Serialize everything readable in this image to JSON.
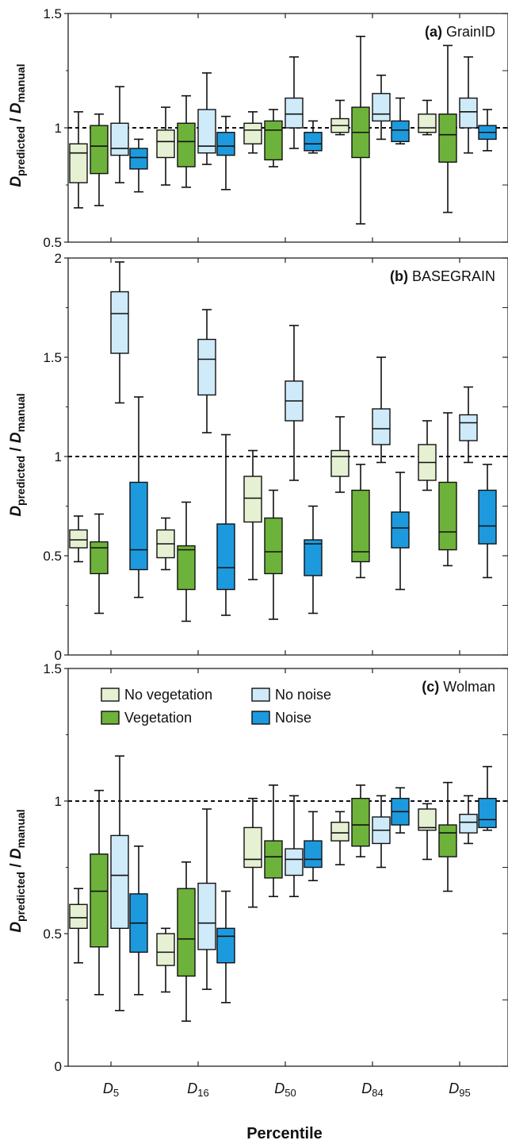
{
  "figure": {
    "ylabel_main": "D",
    "ylabel_sub1": "predicted",
    "ylabel_sep": " / ",
    "ylabel_main2": "D",
    "ylabel_sub2": "manual",
    "xlabel": "Percentile"
  },
  "categories": [
    {
      "main": "D",
      "sub": "5"
    },
    {
      "main": "D",
      "sub": "16"
    },
    {
      "main": "D",
      "sub": "50"
    },
    {
      "main": "D",
      "sub": "84"
    },
    {
      "main": "D",
      "sub": "95"
    }
  ],
  "legend": [
    {
      "label": "No vegetation",
      "color": "#e6f0d2"
    },
    {
      "label": "No noise",
      "color": "#cfeaf8"
    },
    {
      "label": "Vegetation",
      "color": "#6db23a"
    },
    {
      "label": "Noise",
      "color": "#1d9ade"
    }
  ],
  "chart_data": [
    {
      "type": "box",
      "panel_tag": "(a)",
      "title": "GrainID",
      "ylim": [
        0.5,
        1.5
      ],
      "yticks": [
        "0.5",
        "1",
        "1.5"
      ],
      "reference_line": 1,
      "series": [
        {
          "name": "No vegetation",
          "color": "#e6f0d2",
          "boxes": [
            {
              "min": 0.65,
              "q1": 0.76,
              "median": 0.89,
              "q3": 0.93,
              "max": 1.07
            },
            {
              "min": 0.75,
              "q1": 0.87,
              "median": 0.94,
              "q3": 0.99,
              "max": 1.09
            },
            {
              "min": 0.89,
              "q1": 0.93,
              "median": 0.99,
              "q3": 1.02,
              "max": 1.07
            },
            {
              "min": 0.97,
              "q1": 0.98,
              "median": 1.01,
              "q3": 1.04,
              "max": 1.12
            },
            {
              "min": 0.97,
              "q1": 0.98,
              "median": 1.0,
              "q3": 1.06,
              "max": 1.12
            }
          ]
        },
        {
          "name": "Vegetation",
          "color": "#6db23a",
          "boxes": [
            {
              "min": 0.66,
              "q1": 0.8,
              "median": 0.92,
              "q3": 1.01,
              "max": 1.06
            },
            {
              "min": 0.74,
              "q1": 0.83,
              "median": 0.94,
              "q3": 1.02,
              "max": 1.14
            },
            {
              "min": 0.83,
              "q1": 0.86,
              "median": 0.99,
              "q3": 1.03,
              "max": 1.08
            },
            {
              "min": 0.58,
              "q1": 0.87,
              "median": 0.98,
              "q3": 1.09,
              "max": 1.4
            },
            {
              "min": 0.63,
              "q1": 0.85,
              "median": 0.97,
              "q3": 1.06,
              "max": 1.36
            }
          ]
        },
        {
          "name": "No noise",
          "color": "#cfeaf8",
          "boxes": [
            {
              "min": 0.76,
              "q1": 0.88,
              "median": 0.91,
              "q3": 1.02,
              "max": 1.18
            },
            {
              "min": 0.84,
              "q1": 0.89,
              "median": 0.92,
              "q3": 1.08,
              "max": 1.24
            },
            {
              "min": 0.91,
              "q1": 1.0,
              "median": 1.06,
              "q3": 1.13,
              "max": 1.31
            },
            {
              "min": 0.95,
              "q1": 1.03,
              "median": 1.06,
              "q3": 1.15,
              "max": 1.23
            },
            {
              "min": 0.89,
              "q1": 1.0,
              "median": 1.07,
              "q3": 1.13,
              "max": 1.31
            }
          ]
        },
        {
          "name": "Noise",
          "color": "#1d9ade",
          "boxes": [
            {
              "min": 0.72,
              "q1": 0.82,
              "median": 0.87,
              "q3": 0.91,
              "max": 0.95
            },
            {
              "min": 0.73,
              "q1": 0.88,
              "median": 0.92,
              "q3": 0.98,
              "max": 1.05
            },
            {
              "min": 0.89,
              "q1": 0.9,
              "median": 0.93,
              "q3": 0.98,
              "max": 1.03
            },
            {
              "min": 0.93,
              "q1": 0.94,
              "median": 0.99,
              "q3": 1.03,
              "max": 1.13
            },
            {
              "min": 0.9,
              "q1": 0.95,
              "median": 0.98,
              "q3": 1.01,
              "max": 1.08
            }
          ]
        }
      ]
    },
    {
      "type": "box",
      "panel_tag": "(b)",
      "title": "BASEGRAIN",
      "ylim": [
        0,
        2
      ],
      "yticks": [
        "0",
        "0.5",
        "1",
        "1.5",
        "2"
      ],
      "reference_line": 1,
      "series": [
        {
          "name": "No vegetation",
          "color": "#e6f0d2",
          "boxes": [
            {
              "min": 0.47,
              "q1": 0.54,
              "median": 0.58,
              "q3": 0.63,
              "max": 0.7
            },
            {
              "min": 0.43,
              "q1": 0.49,
              "median": 0.56,
              "q3": 0.63,
              "max": 0.69
            },
            {
              "min": 0.38,
              "q1": 0.67,
              "median": 0.79,
              "q3": 0.9,
              "max": 1.03
            },
            {
              "min": 0.82,
              "q1": 0.9,
              "median": 1.0,
              "q3": 1.03,
              "max": 1.2
            },
            {
              "min": 0.83,
              "q1": 0.88,
              "median": 0.97,
              "q3": 1.06,
              "max": 1.18
            }
          ]
        },
        {
          "name": "Vegetation",
          "color": "#6db23a",
          "boxes": [
            {
              "min": 0.21,
              "q1": 0.41,
              "median": 0.54,
              "q3": 0.57,
              "max": 0.71
            },
            {
              "min": 0.17,
              "q1": 0.33,
              "median": 0.53,
              "q3": 0.55,
              "max": 0.77
            },
            {
              "min": 0.18,
              "q1": 0.41,
              "median": 0.52,
              "q3": 0.69,
              "max": 0.83
            },
            {
              "min": 0.39,
              "q1": 0.47,
              "median": 0.52,
              "q3": 0.83,
              "max": 0.96
            },
            {
              "min": 0.45,
              "q1": 0.53,
              "median": 0.62,
              "q3": 0.87,
              "max": 1.22
            }
          ]
        },
        {
          "name": "No noise",
          "color": "#cfeaf8",
          "boxes": [
            {
              "min": 1.27,
              "q1": 1.52,
              "median": 1.72,
              "q3": 1.83,
              "max": 1.98
            },
            {
              "min": 1.12,
              "q1": 1.31,
              "median": 1.49,
              "q3": 1.59,
              "max": 1.74
            },
            {
              "min": 0.88,
              "q1": 1.18,
              "median": 1.28,
              "q3": 1.38,
              "max": 1.66
            },
            {
              "min": 0.97,
              "q1": 1.06,
              "median": 1.14,
              "q3": 1.24,
              "max": 1.5
            },
            {
              "min": 0.97,
              "q1": 1.08,
              "median": 1.17,
              "q3": 1.21,
              "max": 1.35
            }
          ]
        },
        {
          "name": "Noise",
          "color": "#1d9ade",
          "boxes": [
            {
              "min": 0.29,
              "q1": 0.43,
              "median": 0.53,
              "q3": 0.87,
              "max": 1.3
            },
            {
              "min": 0.2,
              "q1": 0.33,
              "median": 0.44,
              "q3": 0.66,
              "max": 1.11
            },
            {
              "min": 0.21,
              "q1": 0.4,
              "median": 0.56,
              "q3": 0.58,
              "max": 0.75
            },
            {
              "min": 0.33,
              "q1": 0.54,
              "median": 0.64,
              "q3": 0.72,
              "max": 0.92
            },
            {
              "min": 0.39,
              "q1": 0.56,
              "median": 0.65,
              "q3": 0.83,
              "max": 0.96
            }
          ]
        }
      ]
    },
    {
      "type": "box",
      "panel_tag": "(c)",
      "title": "Wolman",
      "ylim": [
        0,
        1.5
      ],
      "yticks": [
        "0",
        "0.5",
        "1",
        "1.5"
      ],
      "reference_line": 1,
      "series": [
        {
          "name": "No vegetation",
          "color": "#e6f0d2",
          "boxes": [
            {
              "min": 0.39,
              "q1": 0.52,
              "median": 0.56,
              "q3": 0.61,
              "max": 0.67
            },
            {
              "min": 0.28,
              "q1": 0.38,
              "median": 0.43,
              "q3": 0.5,
              "max": 0.52
            },
            {
              "min": 0.6,
              "q1": 0.75,
              "median": 0.78,
              "q3": 0.9,
              "max": 1.01
            },
            {
              "min": 0.76,
              "q1": 0.85,
              "median": 0.88,
              "q3": 0.92,
              "max": 0.96
            },
            {
              "min": 0.78,
              "q1": 0.89,
              "median": 0.9,
              "q3": 0.97,
              "max": 0.99
            }
          ]
        },
        {
          "name": "Vegetation",
          "color": "#6db23a",
          "boxes": [
            {
              "min": 0.27,
              "q1": 0.45,
              "median": 0.66,
              "q3": 0.8,
              "max": 1.04
            },
            {
              "min": 0.17,
              "q1": 0.34,
              "median": 0.48,
              "q3": 0.67,
              "max": 0.77
            },
            {
              "min": 0.64,
              "q1": 0.71,
              "median": 0.79,
              "q3": 0.85,
              "max": 1.06
            },
            {
              "min": 0.79,
              "q1": 0.83,
              "median": 0.91,
              "q3": 1.01,
              "max": 1.06
            },
            {
              "min": 0.66,
              "q1": 0.79,
              "median": 0.88,
              "q3": 0.91,
              "max": 1.07
            }
          ]
        },
        {
          "name": "No noise",
          "color": "#cfeaf8",
          "boxes": [
            {
              "min": 0.21,
              "q1": 0.52,
              "median": 0.72,
              "q3": 0.87,
              "max": 1.17
            },
            {
              "min": 0.29,
              "q1": 0.44,
              "median": 0.54,
              "q3": 0.69,
              "max": 0.97
            },
            {
              "min": 0.64,
              "q1": 0.72,
              "median": 0.78,
              "q3": 0.82,
              "max": 1.02
            },
            {
              "min": 0.75,
              "q1": 0.84,
              "median": 0.89,
              "q3": 0.94,
              "max": 1.02
            },
            {
              "min": 0.84,
              "q1": 0.88,
              "median": 0.92,
              "q3": 0.95,
              "max": 1.02
            }
          ]
        },
        {
          "name": "Noise",
          "color": "#1d9ade",
          "boxes": [
            {
              "min": 0.27,
              "q1": 0.43,
              "median": 0.54,
              "q3": 0.65,
              "max": 0.83
            },
            {
              "min": 0.24,
              "q1": 0.39,
              "median": 0.49,
              "q3": 0.52,
              "max": 0.66
            },
            {
              "min": 0.7,
              "q1": 0.75,
              "median": 0.78,
              "q3": 0.85,
              "max": 0.96
            },
            {
              "min": 0.88,
              "q1": 0.91,
              "median": 0.96,
              "q3": 1.01,
              "max": 1.05
            },
            {
              "min": 0.89,
              "q1": 0.9,
              "median": 0.93,
              "q3": 1.01,
              "max": 1.13
            }
          ]
        }
      ]
    }
  ]
}
